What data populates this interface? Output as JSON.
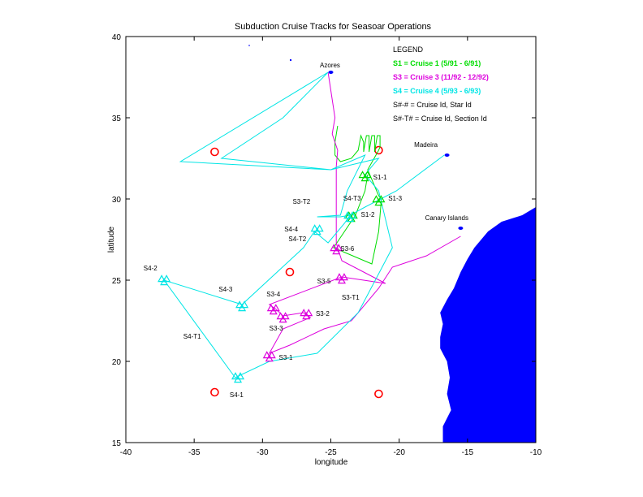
{
  "chart_data": {
    "type": "line",
    "title": "Subduction Cruise Tracks for Seasoar Operations",
    "xlabel": "longitude",
    "ylabel": "latitude",
    "xlim": [
      -40,
      -10
    ],
    "ylim": [
      15,
      40
    ],
    "xticks": [
      -40,
      -35,
      -30,
      -25,
      -20,
      -15,
      -10
    ],
    "yticks": [
      15,
      20,
      25,
      30,
      35,
      40
    ],
    "grid": false,
    "legend": {
      "position": "top-right",
      "title": "LEGEND",
      "entries": [
        {
          "text": "S1 = Cruise 1 (5/91 - 6/91)",
          "color": "#00dd00"
        },
        {
          "text": "S3 = Cruise 3 (11/92 - 12/92)",
          "color": "#dd00dd"
        },
        {
          "text": "S4 = Cruise 4 (5/93 - 6/93)",
          "color": "#00e5e5"
        },
        {
          "text": "S#-# = Cruise Id, Star Id",
          "color": "#000000"
        },
        {
          "text": "S#-T# = Cruise Id, Section Id",
          "color": "#000000"
        }
      ]
    },
    "land": {
      "color": "#0000ff",
      "africa_coast": [
        [
          -10,
          29.5
        ],
        [
          -11,
          29
        ],
        [
          -12.5,
          28.6
        ],
        [
          -13.5,
          28
        ],
        [
          -14.5,
          27
        ],
        [
          -15,
          26.3
        ],
        [
          -15.5,
          25.5
        ],
        [
          -16,
          24.5
        ],
        [
          -16.5,
          23.8
        ],
        [
          -17,
          23
        ],
        [
          -16.8,
          22.3
        ],
        [
          -17,
          21.5
        ],
        [
          -17,
          20.8
        ],
        [
          -16.5,
          20
        ],
        [
          -16.3,
          19
        ],
        [
          -16.5,
          18
        ],
        [
          -16.2,
          17
        ],
        [
          -16.8,
          16
        ],
        [
          -16.8,
          15
        ],
        [
          -10,
          15
        ]
      ],
      "islands": [
        {
          "name": "Azores",
          "lon": -25.0,
          "lat": 37.8
        },
        {
          "name": "Madeira",
          "lon": -16.5,
          "lat": 32.7
        },
        {
          "name": "Canary Islands",
          "lon": -15.5,
          "lat": 28.2
        }
      ]
    },
    "place_labels": [
      {
        "text": "Azores",
        "lon": -25.8,
        "lat": 38.1
      },
      {
        "text": "Madeira",
        "lon": -18.9,
        "lat": 33.2
      },
      {
        "text": "Canary Islands",
        "lon": -18.1,
        "lat": 28.7
      }
    ],
    "circles": [
      {
        "lon": -33.5,
        "lat": 32.9
      },
      {
        "lon": -21.5,
        "lat": 33.0
      },
      {
        "lon": -28.0,
        "lat": 25.5
      },
      {
        "lon": -33.5,
        "lat": 18.1
      },
      {
        "lon": -21.5,
        "lat": 18.0
      }
    ],
    "series": [
      {
        "name": "S1",
        "color": "#00dd00",
        "track": [
          [
            -24.5,
            34.5
          ],
          [
            -24.7,
            33.5
          ],
          [
            -24.7,
            32.7
          ],
          [
            -24.3,
            32.3
          ],
          [
            -23.5,
            32.5
          ],
          [
            -23,
            33.0
          ],
          [
            -22.8,
            33.9
          ],
          [
            -22.6,
            33.5
          ],
          [
            -22.6,
            32.9
          ],
          [
            -22.4,
            33.9
          ],
          [
            -22.2,
            33.9
          ],
          [
            -22.2,
            32.9
          ],
          [
            -22,
            33.9
          ],
          [
            -21.8,
            33.9
          ],
          [
            -21.8,
            32.9
          ],
          [
            -21.6,
            33.9
          ],
          [
            -21.4,
            33.9
          ],
          [
            -21.4,
            33.2
          ],
          [
            -21.5,
            33.0
          ],
          [
            -22.3,
            31.8
          ],
          [
            -22.0,
            31.2
          ],
          [
            -21.5,
            30.2
          ],
          [
            -21.3,
            30.0
          ],
          [
            -21.5,
            28.0
          ],
          [
            -22.0,
            26.0
          ],
          [
            -24.8,
            27.0
          ],
          [
            -23.2,
            29.0
          ],
          [
            -22.5,
            30.5
          ],
          [
            -22.3,
            31.5
          ]
        ],
        "stars": [
          {
            "id": "S1-1",
            "lon": -22.5,
            "lat": 31.5
          },
          {
            "id": "S1-2",
            "lon": -23.5,
            "lat": 29.0
          },
          {
            "id": "S1-3",
            "lon": -21.5,
            "lat": 30.0
          }
        ]
      },
      {
        "name": "S3",
        "color": "#dd00dd",
        "track": [
          [
            -25.2,
            37.8
          ],
          [
            -24.7,
            35.0
          ],
          [
            -24.9,
            34.0
          ],
          [
            -24.5,
            33.0
          ],
          [
            -24.6,
            32.0
          ],
          [
            -24.6,
            30.0
          ],
          [
            -24.6,
            28.0
          ],
          [
            -24.6,
            27.3
          ],
          [
            -24.5,
            27.0
          ],
          [
            -24.2,
            26.2
          ],
          [
            -21.0,
            24.8
          ],
          [
            -24.2,
            25.2
          ],
          [
            -29.5,
            23.5
          ],
          [
            -29.0,
            23.2
          ],
          [
            -28.5,
            22.8
          ],
          [
            -27.0,
            23.0
          ],
          [
            -26.5,
            22.7
          ],
          [
            -28.5,
            22.0
          ],
          [
            -29.5,
            20.5
          ],
          [
            -28.0,
            21.0
          ],
          [
            -25.5,
            22.0
          ],
          [
            -23.5,
            22.5
          ],
          [
            -21.5,
            24.5
          ],
          [
            -20.5,
            25.8
          ],
          [
            -18.0,
            26.5
          ],
          [
            -15.5,
            27.7
          ]
        ],
        "stars": [
          {
            "id": "S3-2",
            "lon": -26.8,
            "lat": 23.0
          },
          {
            "id": "S3-3",
            "lon": -28.5,
            "lat": 22.8
          },
          {
            "id": "S3-4",
            "lon": -29.2,
            "lat": 23.3
          },
          {
            "id": "S3-5",
            "lon": -24.2,
            "lat": 25.2
          },
          {
            "id": "S3-6",
            "lon": -24.6,
            "lat": 27.0
          },
          {
            "id": "S3-1",
            "lon": -29.5,
            "lat": 20.4
          }
        ]
      },
      {
        "name": "S4",
        "color": "#00e5e5",
        "track": [
          [
            -16.7,
            32.7
          ],
          [
            -20.2,
            30.5
          ],
          [
            -22.5,
            29.5
          ],
          [
            -23.6,
            29.0
          ],
          [
            -24.0,
            28.5
          ],
          [
            -25.2,
            27.3
          ],
          [
            -26.2,
            28.0
          ],
          [
            -27.0,
            27.0
          ],
          [
            -31.5,
            23.5
          ],
          [
            -37.2,
            25.0
          ],
          [
            -32.0,
            19.0
          ],
          [
            -29.5,
            20.0
          ],
          [
            -26.0,
            20.5
          ],
          [
            -23.0,
            23.0
          ],
          [
            -20.5,
            27.0
          ],
          [
            -21.5,
            30.5
          ],
          [
            -22.5,
            31.5
          ],
          [
            -21.5,
            32.5
          ],
          [
            -25.0,
            31.8
          ],
          [
            -36.0,
            32.3
          ],
          [
            -25.2,
            37.8
          ],
          [
            -28.5,
            35.0
          ],
          [
            -33.0,
            32.5
          ],
          [
            -25.0,
            31.8
          ],
          [
            -22.5,
            32.7
          ],
          [
            -23.8,
            30.5
          ],
          [
            -24.3,
            29.0
          ],
          [
            -26.0,
            28.9
          ],
          [
            -24.3,
            28.9
          ],
          [
            -23.6,
            29.0
          ]
        ],
        "stars": [
          {
            "id": "S4-1",
            "lon": -31.8,
            "lat": 19.1
          },
          {
            "id": "S4-2",
            "lon": -37.2,
            "lat": 25.1
          },
          {
            "id": "S4-3",
            "lon": -31.5,
            "lat": 23.5
          },
          {
            "id": "S4-4",
            "lon": -26.0,
            "lat": 28.2
          },
          {
            "id": "S4-T3",
            "lon": -23.6,
            "lat": 29.0
          }
        ]
      }
    ],
    "labels": [
      {
        "text": "S1-1",
        "lon": -21.9,
        "lat": 31.2,
        "anchor": "start"
      },
      {
        "text": "S1-2",
        "lon": -22.8,
        "lat": 28.9,
        "anchor": "start"
      },
      {
        "text": "S1-3",
        "lon": -20.8,
        "lat": 29.9,
        "anchor": "start"
      },
      {
        "text": "S3-T2",
        "lon": -26.5,
        "lat": 29.7,
        "anchor": "end"
      },
      {
        "text": "S4-T3",
        "lon": -22.8,
        "lat": 29.9,
        "anchor": "end"
      },
      {
        "text": "S4-4",
        "lon": -27.4,
        "lat": 28.0,
        "anchor": "end"
      },
      {
        "text": "S4-T2",
        "lon": -26.8,
        "lat": 27.4,
        "anchor": "end"
      },
      {
        "text": "S3-6",
        "lon": -24.3,
        "lat": 26.8,
        "anchor": "start"
      },
      {
        "text": "S4-2",
        "lon": -37.7,
        "lat": 25.6,
        "anchor": "end"
      },
      {
        "text": "S3-5",
        "lon": -25.0,
        "lat": 24.8,
        "anchor": "end"
      },
      {
        "text": "S4-3",
        "lon": -32.2,
        "lat": 24.3,
        "anchor": "end"
      },
      {
        "text": "S3-4",
        "lon": -28.7,
        "lat": 24.0,
        "anchor": "end"
      },
      {
        "text": "S3-T1",
        "lon": -24.2,
        "lat": 23.8,
        "anchor": "start"
      },
      {
        "text": "S3-2",
        "lon": -26.1,
        "lat": 22.8,
        "anchor": "start"
      },
      {
        "text": "S3-3",
        "lon": -28.5,
        "lat": 21.9,
        "anchor": "end"
      },
      {
        "text": "S4-T1",
        "lon": -34.5,
        "lat": 21.4,
        "anchor": "end"
      },
      {
        "text": "S3-1",
        "lon": -28.8,
        "lat": 20.1,
        "anchor": "start"
      },
      {
        "text": "S4-1",
        "lon": -31.9,
        "lat": 17.8,
        "anchor": "middle"
      }
    ]
  }
}
